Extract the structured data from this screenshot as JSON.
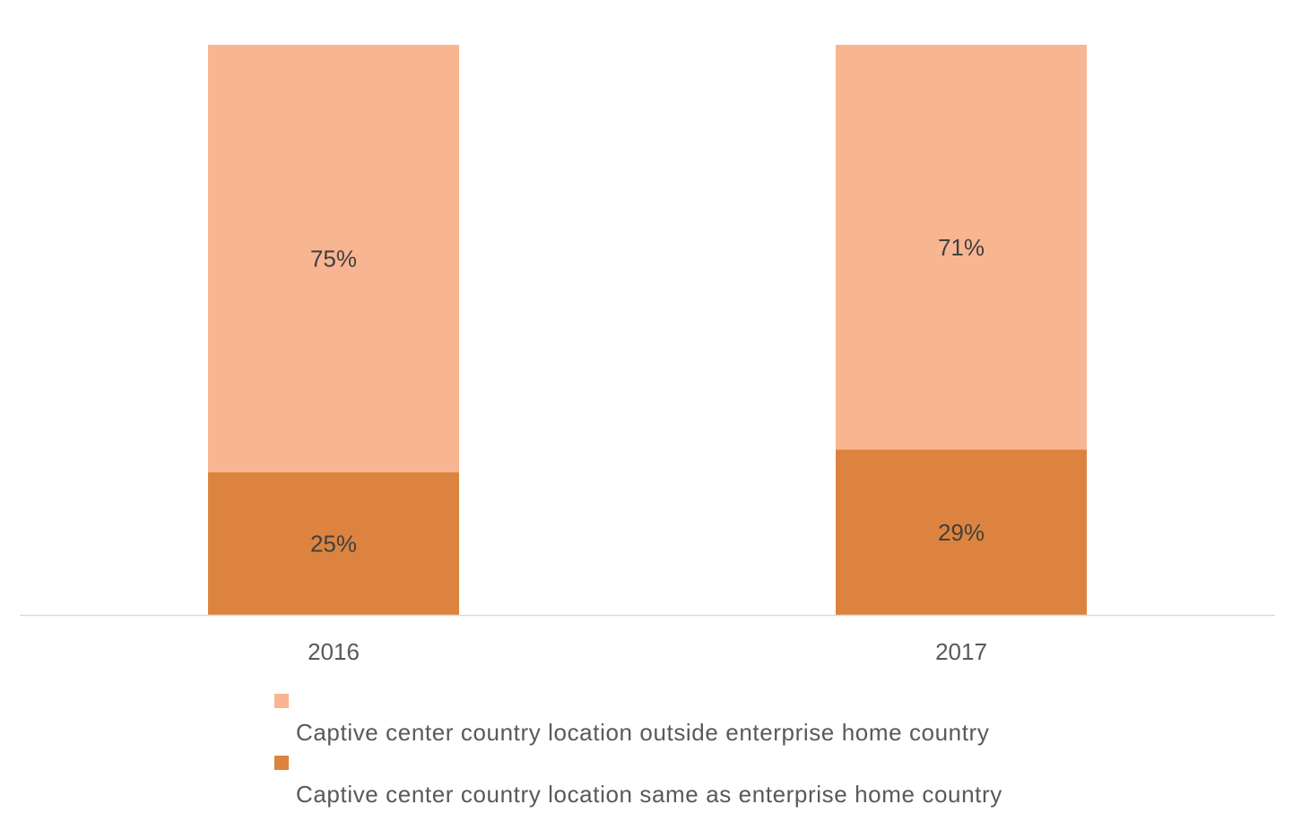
{
  "chart_data": {
    "type": "bar",
    "stacked": true,
    "normalized_percent": true,
    "categories": [
      "2016",
      "2017"
    ],
    "series": [
      {
        "name": "Captive center country location same as enterprise home country",
        "values": [
          25,
          29
        ],
        "labels": [
          "25%",
          "29%"
        ],
        "color": "#DC843F"
      },
      {
        "name": "Captive center country location outside enterprise home country",
        "values": [
          75,
          71
        ],
        "labels": [
          "75%",
          "71%"
        ],
        "color": "#F8B591"
      }
    ],
    "title": "",
    "xlabel": "",
    "ylabel": "",
    "ylim": [
      0,
      100
    ],
    "grid": false,
    "legend_position": "bottom"
  },
  "legend": {
    "items": [
      {
        "label": "Captive center country location outside enterprise home country",
        "color": "#F8B591"
      },
      {
        "label": "Captive center country location same as enterprise home country",
        "color": "#DC843F"
      }
    ]
  }
}
